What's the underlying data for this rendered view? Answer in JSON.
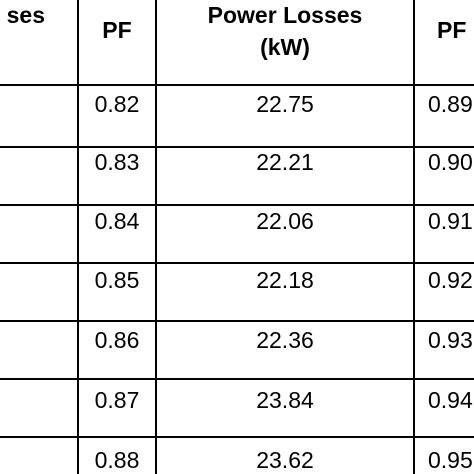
{
  "table": {
    "headers": {
      "left_partial": "ses",
      "pf_a": "PF",
      "losses_line1": "Power Losses",
      "losses_line2": "(kW)",
      "pf_b_partial": "PF"
    },
    "rows": [
      {
        "pf": "0.82",
        "losses": "22.75",
        "pf_next_partial": "0.89"
      },
      {
        "pf": "0.83",
        "losses": "22.21",
        "pf_next_partial": "0.90"
      },
      {
        "pf": "0.84",
        "losses": "22.06",
        "pf_next_partial": "0.91"
      },
      {
        "pf": "0.85",
        "losses": "22.18",
        "pf_next_partial": "0.92"
      },
      {
        "pf": "0.86",
        "losses": "22.36",
        "pf_next_partial": "0.93"
      },
      {
        "pf": "0.87",
        "losses": "23.84",
        "pf_next_partial": "0.94"
      },
      {
        "pf": "0.88",
        "losses": "23.62",
        "pf_next_partial": "0.95"
      }
    ]
  }
}
